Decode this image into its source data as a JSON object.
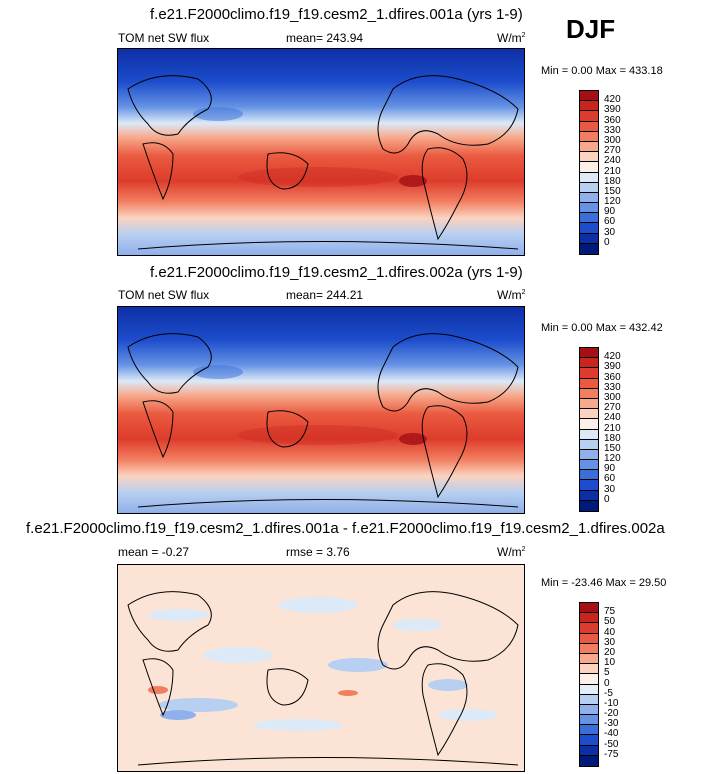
{
  "season": "DJF",
  "panels": [
    {
      "title": "f.e21.F2000climo.f19_f19.cesm2_1.dfires.001a (yrs 1-9)",
      "left_label": "TOM net SW flux",
      "mid_label": "mean= 243.94",
      "units": "W/m",
      "units_sup": "2",
      "minmax": "Min =   0.00 Max = 433.18",
      "colorbar_labels": [
        "420",
        "390",
        "360",
        "330",
        "300",
        "270",
        "240",
        "210",
        "180",
        "150",
        "120",
        "90",
        "60",
        "30",
        "0"
      ],
      "colorbar_colors": [
        "#a50f15",
        "#c8261d",
        "#dd3c2c",
        "#ea5a40",
        "#f27e60",
        "#f7a98b",
        "#fbd3c0",
        "#fdf0e8",
        "#dce9f7",
        "#b7cff0",
        "#8fb0ea",
        "#6592e4",
        "#3a6fda",
        "#1d4dcc",
        "#0d2fa6",
        "#001a7a"
      ],
      "chart_data": {
        "type": "heatmap",
        "title": "f.e21.F2000climo.f19_f19.cesm2_1.dfires.001a (yrs 1-9)",
        "variable": "TOM net SW flux",
        "units": "W/m2",
        "mean": 243.94,
        "min": 0.0,
        "max": 433.18,
        "levels": [
          0,
          30,
          60,
          90,
          120,
          150,
          180,
          210,
          240,
          270,
          300,
          330,
          360,
          390,
          420
        ]
      }
    },
    {
      "title": "f.e21.F2000climo.f19_f19.cesm2_1.dfires.002a (yrs 1-9)",
      "left_label": "TOM net SW flux",
      "mid_label": "mean= 244.21",
      "units": "W/m",
      "units_sup": "2",
      "minmax": "Min =   0.00 Max = 432.42",
      "colorbar_labels": [
        "420",
        "390",
        "360",
        "330",
        "300",
        "270",
        "240",
        "210",
        "180",
        "150",
        "120",
        "90",
        "60",
        "30",
        "0"
      ],
      "colorbar_colors": [
        "#a50f15",
        "#c8261d",
        "#dd3c2c",
        "#ea5a40",
        "#f27e60",
        "#f7a98b",
        "#fbd3c0",
        "#fdf0e8",
        "#dce9f7",
        "#b7cff0",
        "#8fb0ea",
        "#6592e4",
        "#3a6fda",
        "#1d4dcc",
        "#0d2fa6",
        "#001a7a"
      ],
      "chart_data": {
        "type": "heatmap",
        "title": "f.e21.F2000climo.f19_f19.cesm2_1.dfires.002a (yrs 1-9)",
        "variable": "TOM net SW flux",
        "units": "W/m2",
        "mean": 244.21,
        "min": 0.0,
        "max": 432.42,
        "levels": [
          0,
          30,
          60,
          90,
          120,
          150,
          180,
          210,
          240,
          270,
          300,
          330,
          360,
          390,
          420
        ]
      }
    },
    {
      "title": "f.e21.F2000climo.f19_f19.cesm2_1.dfires.001a - f.e21.F2000climo.f19_f19.cesm2_1.dfires.002a",
      "left_label": "mean =  -0.27",
      "mid_label": "rmse =   3.76",
      "units": "W/m",
      "units_sup": "2",
      "minmax": "Min = -23.46 Max =  29.50",
      "colorbar_labels": [
        "75",
        "50",
        "40",
        "30",
        "20",
        "10",
        "5",
        "0",
        "-5",
        "-10",
        "-20",
        "-30",
        "-40",
        "-50",
        "-75"
      ],
      "colorbar_colors": [
        "#a50f15",
        "#c8261d",
        "#dd3c2c",
        "#ea5a40",
        "#f27e60",
        "#f7a98b",
        "#fbd3c0",
        "#fdf0e8",
        "#e6eef9",
        "#b7cff0",
        "#8fb0ea",
        "#6592e4",
        "#3a6fda",
        "#1d4dcc",
        "#0d2fa6",
        "#001a7a"
      ],
      "chart_data": {
        "type": "heatmap",
        "title": "f.e21.F2000climo.f19_f19.cesm2_1.dfires.001a - f.e21.F2000climo.f19_f19.cesm2_1.dfires.002a",
        "units": "W/m2",
        "mean": -0.27,
        "rmse": 3.76,
        "min": -23.46,
        "max": 29.5,
        "levels": [
          -75,
          -50,
          -40,
          -30,
          -20,
          -10,
          -5,
          0,
          5,
          10,
          20,
          30,
          40,
          50,
          75
        ]
      }
    }
  ]
}
